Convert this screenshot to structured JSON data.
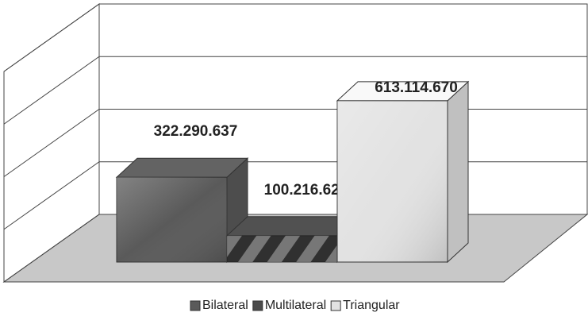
{
  "chart_data": {
    "type": "bar",
    "series": [
      {
        "name": "Bilateral",
        "color": "#5a5a5a",
        "values": [
          322290637
        ],
        "value_labels": [
          "322.290.637"
        ]
      },
      {
        "name": "Multilateral",
        "color": "#4a4a4a",
        "values": [
          100216623
        ],
        "value_labels": [
          "100.216.623"
        ]
      },
      {
        "name": "Triangular",
        "color": "#e2e2e2",
        "values": [
          613114670
        ],
        "value_labels": [
          "613.114.670"
        ]
      }
    ],
    "ylim": [
      0,
      800000000
    ],
    "yticks": [
      0,
      200000000,
      400000000,
      600000000,
      800000000
    ],
    "grid": true,
    "legend": "bottom"
  }
}
